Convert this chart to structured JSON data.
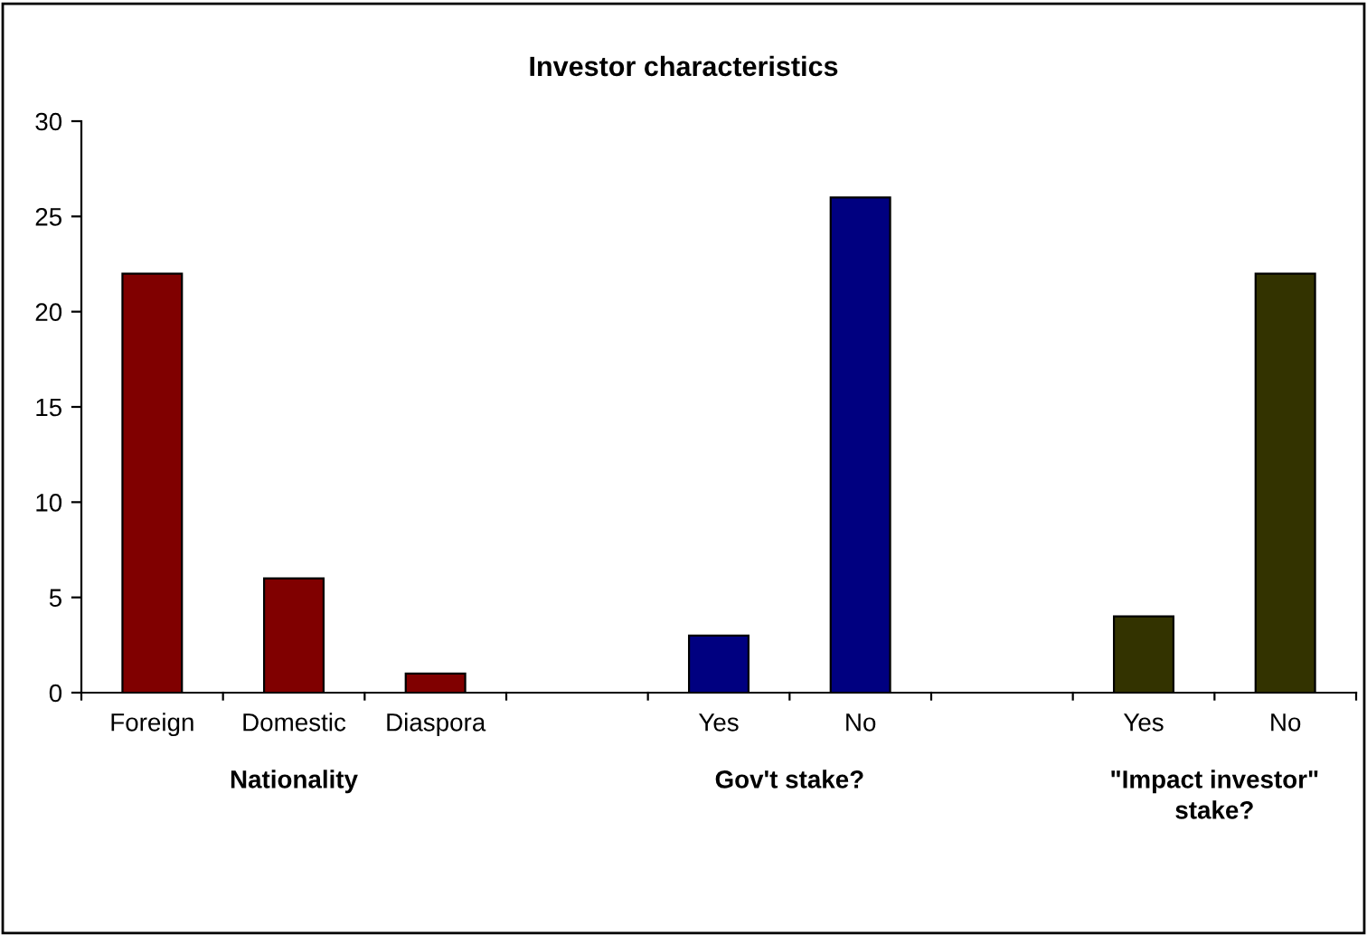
{
  "chart_data": {
    "type": "bar",
    "title": "Investor characteristics",
    "categories": [
      "Foreign",
      "Domestic",
      "Diaspora",
      null,
      "Yes",
      "No",
      null,
      "Yes",
      "No"
    ],
    "values": [
      22,
      6,
      1,
      null,
      3,
      26,
      null,
      4,
      22
    ],
    "colors": [
      "#800000",
      "#800000",
      "#800000",
      null,
      "#000080",
      "#000080",
      null,
      "#333300",
      "#333300"
    ],
    "ylim": [
      0,
      30
    ],
    "yticks": [
      0,
      5,
      10,
      15,
      20,
      25,
      30
    ],
    "grid": false,
    "legend": false,
    "annotations": [
      "Nationality",
      "Gov't stake?",
      "\"Impact investor\"\nstake?"
    ]
  }
}
